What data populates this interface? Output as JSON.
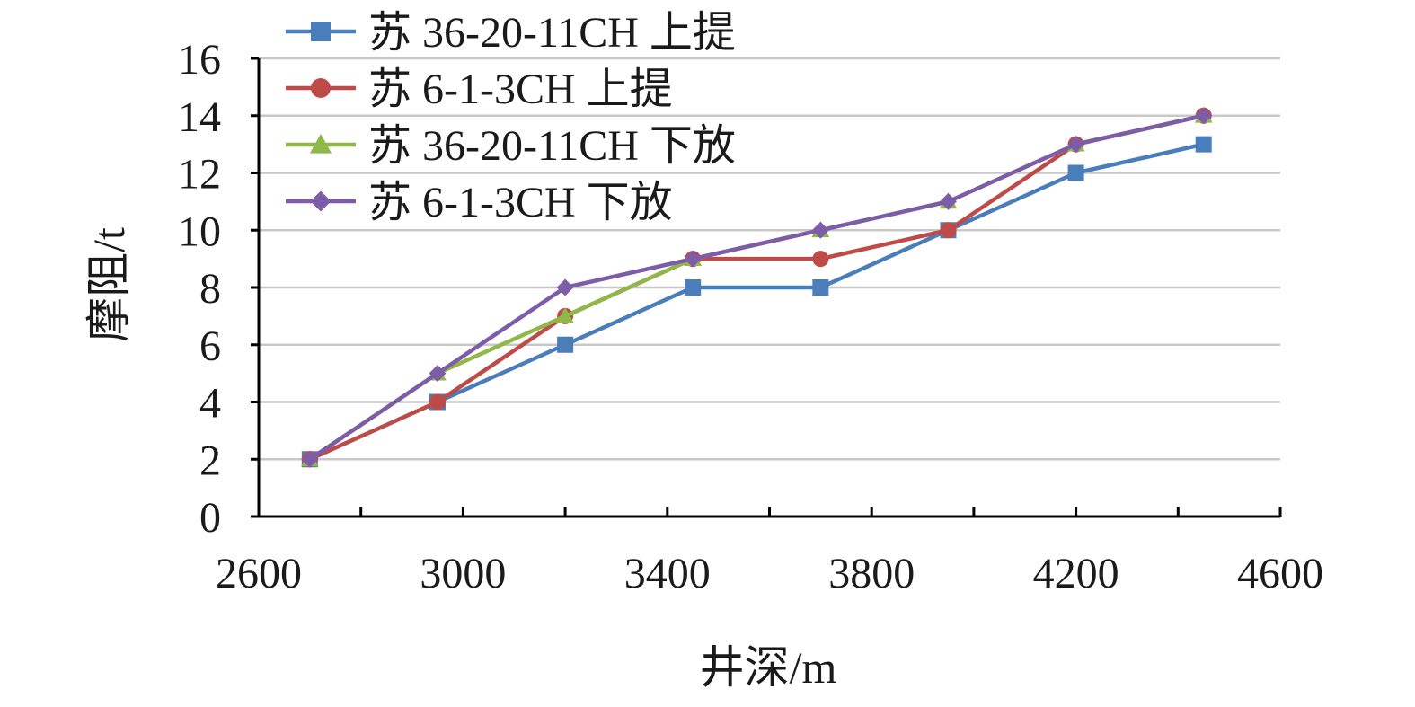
{
  "chart_data": {
    "type": "line",
    "title": "",
    "xlabel": "井深/m",
    "ylabel": "摩阻/t",
    "xlim": [
      2600,
      4600
    ],
    "ylim": [
      0,
      16
    ],
    "xticks": [
      2600,
      3000,
      3400,
      3800,
      4200,
      4600
    ],
    "yticks": [
      0,
      2,
      4,
      6,
      8,
      10,
      12,
      14,
      16
    ],
    "x_tick_labels": [
      "2600",
      "3000",
      "3400",
      "3800",
      "4200",
      "4600"
    ],
    "y_tick_labels": [
      "0",
      "2",
      "4",
      "6",
      "8",
      "10",
      "12",
      "14",
      "16"
    ],
    "grid": "horizontal",
    "legend_position": "top-left",
    "x": [
      2700,
      2950,
      3200,
      3450,
      3700,
      3950,
      4200,
      4450
    ],
    "series": [
      {
        "name": "苏 36-20-11CH 上提",
        "color": "#4a7ebb",
        "marker": "square",
        "values": [
          2,
          4,
          6,
          8,
          8,
          10,
          12,
          13
        ]
      },
      {
        "name": "苏 6-1-3CH 上提",
        "color": "#be4b48",
        "marker": "circle",
        "values": [
          2,
          4,
          7,
          9,
          9,
          10,
          13,
          14
        ]
      },
      {
        "name": "苏 36-20-11CH 下放",
        "color": "#8fb849",
        "marker": "triangle",
        "values": [
          2,
          5,
          7,
          9,
          10,
          11,
          13,
          14
        ]
      },
      {
        "name": "苏 6-1-3CH 下放",
        "color": "#7d5ca8",
        "marker": "diamond",
        "values": [
          2,
          5,
          8,
          9,
          10,
          11,
          13,
          14
        ]
      }
    ]
  }
}
